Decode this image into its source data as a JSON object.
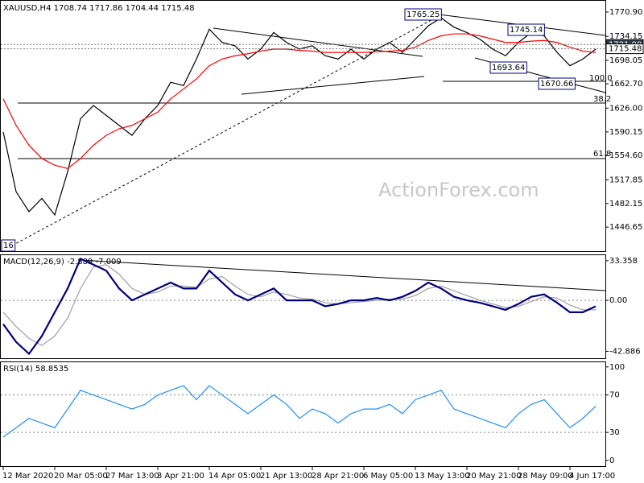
{
  "title": "XAUUSD,H4  1708.74 1717.86 1704.44 1715.48",
  "watermark": "ActionForex.com",
  "annotations": [
    "1765.25",
    "1745.14",
    "1693.64",
    "1670.66",
    "100.0",
    "38.2",
    "61.8",
    "16"
  ],
  "chart_data": [
    {
      "type": "line",
      "ylim": [
        1410.4,
        1787.8
      ],
      "yticks": [
        {
          "value": 1770.9,
          "label": "1770.90"
        },
        {
          "value": 1734.15,
          "label": "1734.15"
        },
        {
          "value": 1698.05,
          "label": "1698.05"
        },
        {
          "value": 1662.7,
          "label": "1662.70"
        },
        {
          "value": 1626.0,
          "label": "1626.00"
        },
        {
          "value": 1590.15,
          "label": "1590.15"
        },
        {
          "value": 1554.6,
          "label": "1554.60"
        },
        {
          "value": 1517.85,
          "label": "1517.85"
        },
        {
          "value": 1482.15,
          "label": "1482.15"
        },
        {
          "value": 1446.65,
          "label": "1446.65"
        }
      ],
      "price_markers": [
        {
          "value": 1721.9,
          "label": "1721.90"
        },
        {
          "value": 1715.48,
          "label": "1715.48"
        }
      ],
      "grid": false,
      "series": [
        {
          "color": "#000000",
          "values": [
            1590,
            1500,
            1470,
            1490,
            1465,
            1530,
            1610,
            1630,
            1615,
            1600,
            1585,
            1610,
            1630,
            1665,
            1660,
            1700,
            1745,
            1725,
            1720,
            1700,
            1715,
            1740,
            1725,
            1715,
            1720,
            1705,
            1700,
            1715,
            1700,
            1715,
            1725,
            1710,
            1730,
            1750,
            1762,
            1748,
            1740,
            1730,
            1715,
            1705,
            1725,
            1740,
            1735,
            1710,
            1690,
            1700,
            1715
          ]
        },
        {
          "color": "#ff0000",
          "values": [
            1640,
            1600,
            1570,
            1550,
            1540,
            1535,
            1550,
            1570,
            1585,
            1595,
            1600,
            1610,
            1620,
            1640,
            1655,
            1670,
            1690,
            1700,
            1705,
            1708,
            1712,
            1715,
            1715,
            1713,
            1712,
            1710,
            1710,
            1710,
            1710,
            1711,
            1712,
            1713,
            1718,
            1728,
            1735,
            1738,
            1738,
            1735,
            1730,
            1725,
            1725,
            1727,
            1728,
            1725,
            1718,
            1712,
            1710
          ]
        }
      ]
    },
    {
      "type": "line",
      "title": "MACD(12,26,9) -2.889 -7.009",
      "ylim": [
        -48.7,
        38.0
      ],
      "yticks": [
        33.358,
        {
          "value": 0,
          "label": "0.00"
        },
        -42.886
      ],
      "grid": true,
      "series": [
        {
          "color": "#a0a0a0",
          "values": [
            -10,
            -22,
            -32,
            -38,
            -30,
            -15,
            10,
            28,
            30,
            22,
            10,
            5,
            7,
            12,
            12,
            11,
            18,
            20,
            12,
            5,
            3,
            7,
            5,
            2,
            1,
            -2,
            -3,
            -2,
            -1,
            0,
            1,
            1,
            4,
            10,
            12,
            8,
            4,
            0,
            -3,
            -6,
            -5,
            -1,
            3,
            2,
            -4,
            -8,
            -8
          ]
        },
        {
          "color": "#000080",
          "values": [
            -20,
            -35,
            -45,
            -30,
            -10,
            10,
            35,
            30,
            25,
            10,
            0,
            5,
            10,
            15,
            10,
            10,
            25,
            15,
            5,
            0,
            5,
            10,
            0,
            0,
            0,
            -5,
            -3,
            0,
            0,
            2,
            0,
            3,
            8,
            15,
            10,
            3,
            0,
            -2,
            -5,
            -8,
            -3,
            3,
            5,
            -2,
            -10,
            -10,
            -5
          ]
        }
      ]
    },
    {
      "type": "line",
      "title": "RSI(14) 58.8535",
      "ylim": [
        -6,
        105
      ],
      "yticks": [
        100,
        70,
        30,
        0
      ],
      "grid": true,
      "categories": [
        "12 Mar 2020",
        null,
        null,
        null,
        "20 Mar 05:00",
        null,
        null,
        null,
        "27 Mar 13:00",
        null,
        null,
        null,
        "3 Apr 21:00",
        null,
        null,
        null,
        "14 Apr 05:00",
        null,
        null,
        null,
        "21 Apr 13:00",
        null,
        null,
        null,
        "28 Apr 21:00",
        null,
        null,
        null,
        "6 May 05:00",
        null,
        null,
        null,
        "13 May 13:00",
        null,
        null,
        null,
        "20 May 21:00",
        null,
        null,
        null,
        "28 May 09:00",
        null,
        null,
        null,
        "4 Jun 17:00",
        null,
        null
      ],
      "series": [
        {
          "color": "#1e90ff",
          "values": [
            25,
            35,
            45,
            40,
            35,
            55,
            75,
            70,
            65,
            60,
            55,
            60,
            70,
            75,
            80,
            65,
            80,
            70,
            60,
            50,
            60,
            70,
            60,
            45,
            55,
            50,
            40,
            50,
            55,
            55,
            60,
            50,
            65,
            70,
            75,
            55,
            50,
            45,
            40,
            35,
            50,
            60,
            65,
            50,
            35,
            45,
            58
          ]
        }
      ]
    }
  ]
}
